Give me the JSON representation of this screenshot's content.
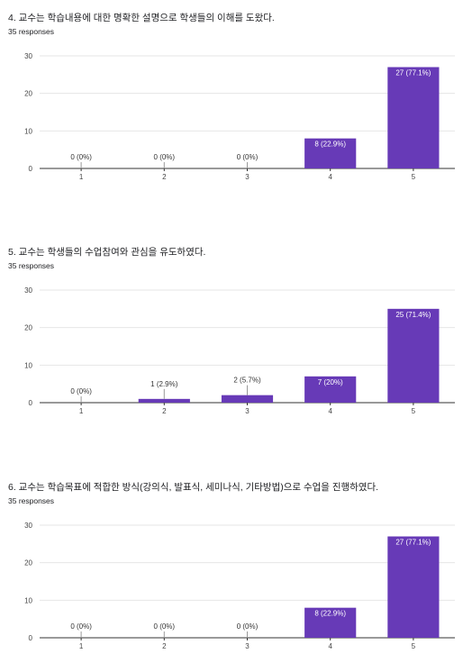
{
  "bar_color": "#673ab7",
  "charts": [
    {
      "title": "4. 교수는 학습내용에 대한 명확한 설명으로 학생들의 이해를 도왔다.",
      "responses": "35 responses",
      "chart_data": {
        "type": "bar",
        "categories": [
          "1",
          "2",
          "3",
          "4",
          "5"
        ],
        "values": [
          0,
          0,
          0,
          8,
          27
        ],
        "labels": [
          "0 (0%)",
          "0 (0%)",
          "0 (0%)",
          "8 (22.9%)",
          "27 (77.1%)"
        ],
        "yticks": [
          "0",
          "10",
          "20",
          "30"
        ],
        "ylim": [
          0,
          30
        ]
      }
    },
    {
      "title": "5. 교수는 학생들의 수업참여와 관심을 유도하였다.",
      "responses": "35 responses",
      "chart_data": {
        "type": "bar",
        "categories": [
          "1",
          "2",
          "3",
          "4",
          "5"
        ],
        "values": [
          0,
          1,
          2,
          7,
          25
        ],
        "labels": [
          "0 (0%)",
          "1 (2.9%)",
          "2 (5.7%)",
          "7 (20%)",
          "25 (71.4%)"
        ],
        "yticks": [
          "0",
          "10",
          "20",
          "30"
        ],
        "ylim": [
          0,
          30
        ]
      }
    },
    {
      "title": "6. 교수는 학습목표에 적합한 방식(강의식, 발표식, 세미나식, 기타방법)으로 수업을 진행하였다.",
      "responses": "35 responses",
      "chart_data": {
        "type": "bar",
        "categories": [
          "1",
          "2",
          "3",
          "4",
          "5"
        ],
        "values": [
          0,
          0,
          0,
          8,
          27
        ],
        "labels": [
          "0 (0%)",
          "0 (0%)",
          "0 (0%)",
          "8 (22.9%)",
          "27 (77.1%)"
        ],
        "yticks": [
          "0",
          "10",
          "20",
          "30"
        ],
        "ylim": [
          0,
          30
        ]
      }
    }
  ]
}
